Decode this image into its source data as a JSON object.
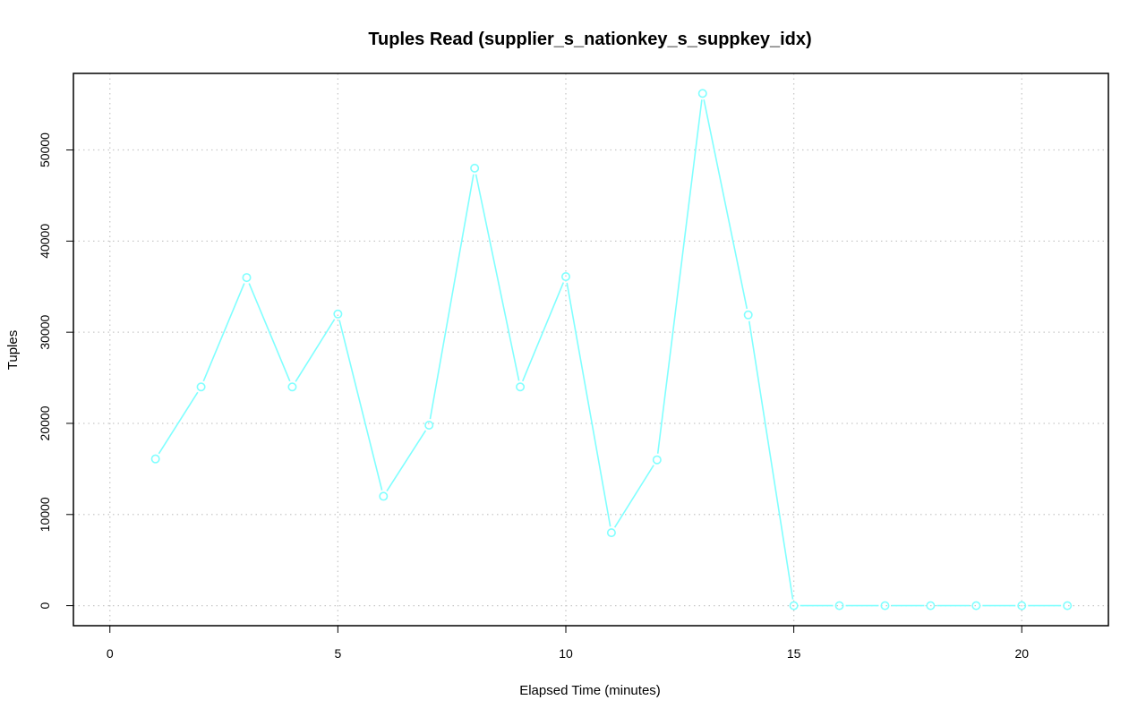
{
  "chart_data": {
    "type": "line",
    "title": "Tuples Read (supplier_s_nationkey_s_suppkey_idx)",
    "xlabel": "Elapsed Time (minutes)",
    "ylabel": "Tuples",
    "xlim": [
      -0.8,
      21.9
    ],
    "ylim": [
      -2200,
      58400
    ],
    "x_ticks": [
      0,
      5,
      10,
      15,
      20
    ],
    "y_ticks": [
      0,
      10000,
      20000,
      30000,
      40000,
      50000
    ],
    "grid": true,
    "series": [
      {
        "color": "#80FFFF",
        "marker": "open-circle",
        "x": [
          1,
          2,
          3,
          4,
          5,
          6,
          7,
          8,
          9,
          10,
          11,
          12,
          13,
          14,
          15,
          16,
          17,
          18,
          19,
          20,
          21
        ],
        "values": [
          16100,
          24000,
          36000,
          24000,
          32000,
          12000,
          19800,
          48000,
          24000,
          36100,
          8000,
          16000,
          56200,
          31900,
          0,
          0,
          0,
          0,
          0,
          0,
          0
        ]
      }
    ]
  }
}
